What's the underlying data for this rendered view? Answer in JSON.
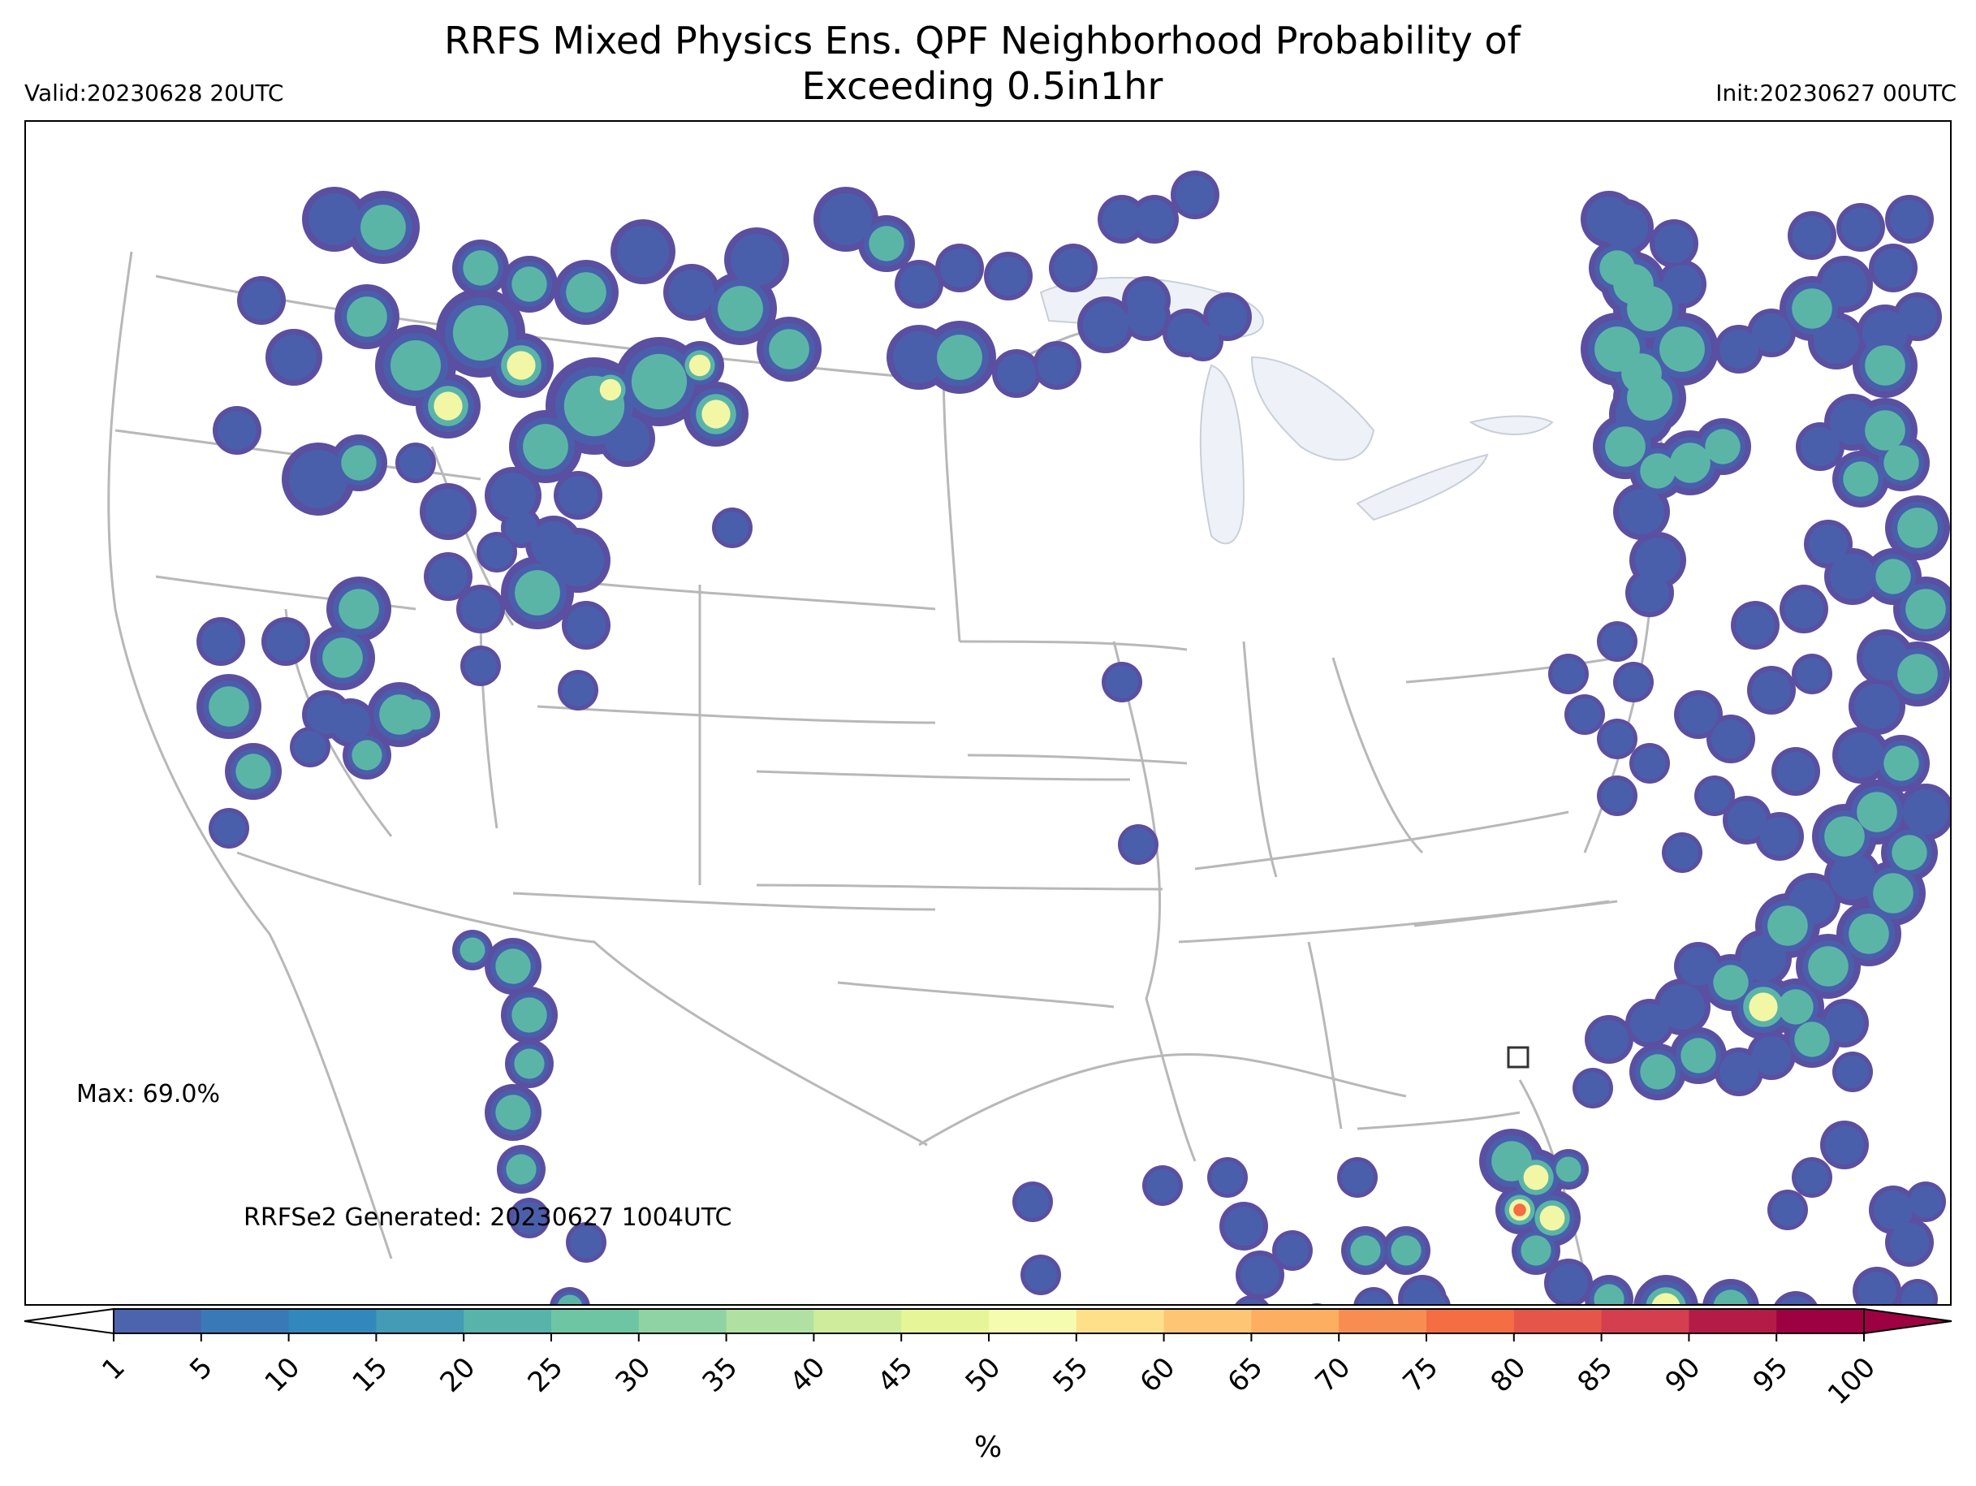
{
  "header": {
    "title_line1": "RRFS Mixed Physics Ens. QPF Neighborhood Probability of",
    "title_line2": "Exceeding 0.5in1hr",
    "valid": "Valid:20230628 20UTC",
    "init": "Init:20230627 00UTC"
  },
  "annotations": {
    "max": "Max: 69.0%",
    "generated": "RRFSe2 Generated: 20230627 1004UTC"
  },
  "colorbar": {
    "unit": "%",
    "ticks": [
      "1",
      "5",
      "10",
      "15",
      "20",
      "25",
      "30",
      "35",
      "40",
      "45",
      "50",
      "55",
      "60",
      "65",
      "70",
      "75",
      "80",
      "85",
      "90",
      "95",
      "100"
    ],
    "colors": [
      "#5e4fa2",
      "#4c63ae",
      "#3a79b8",
      "#3288bd",
      "#439bb5",
      "#58b3ab",
      "#6dc5a4",
      "#8fd3a4",
      "#b1e1a2",
      "#cfec9d",
      "#e6f598",
      "#f5fbaf",
      "#fee08b",
      "#fdc574",
      "#fdae61",
      "#f88d52",
      "#f46d43",
      "#e55549",
      "#d53e4f",
      "#b41c47",
      "#9e0142"
    ]
  },
  "map": {
    "feature_colors": {
      "state_lines": "#b8b8b8",
      "lakes": "#eef2f8",
      "low": "#4a5fab",
      "mid": "#5bb5a7",
      "high": "#f2f7a6",
      "peak": "#f46d43"
    }
  }
}
